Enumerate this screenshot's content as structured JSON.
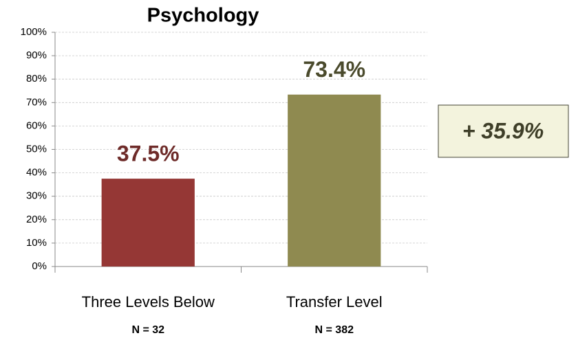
{
  "chart_data": {
    "type": "bar",
    "title": "Psychology",
    "categories": [
      "Three Levels Below",
      "Transfer Level"
    ],
    "category_notes": [
      "N = 32",
      "N = 382"
    ],
    "values": [
      37.5,
      73.4
    ],
    "value_labels": [
      "37.5%",
      "73.4%"
    ],
    "colors": [
      "#953735",
      "#8f8a50"
    ],
    "value_label_colors": [
      "#6e2b29",
      "#4a4a2c"
    ],
    "annotation": "+ 35.9%",
    "ylim": [
      0,
      100
    ],
    "yticks": [
      {
        "value": 0,
        "label": "0%"
      },
      {
        "value": 10,
        "label": "10%"
      },
      {
        "value": 20,
        "label": "20%"
      },
      {
        "value": 30,
        "label": "30%"
      },
      {
        "value": 40,
        "label": "40%"
      },
      {
        "value": 50,
        "label": "50%"
      },
      {
        "value": 60,
        "label": "60%"
      },
      {
        "value": 70,
        "label": "70%"
      },
      {
        "value": 80,
        "label": "80%"
      },
      {
        "value": 90,
        "label": "90%"
      },
      {
        "value": 100,
        "label": "100%"
      }
    ],
    "grid": true
  }
}
